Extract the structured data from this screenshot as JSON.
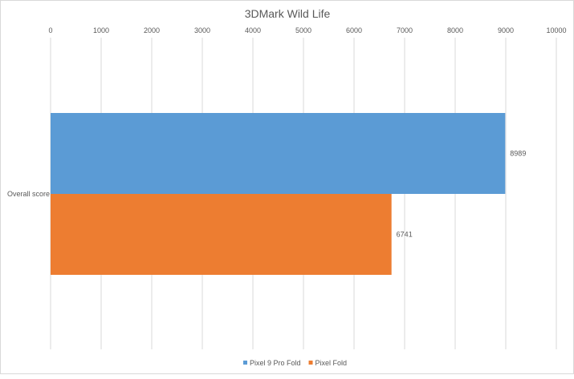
{
  "chart_data": {
    "type": "bar",
    "orientation": "horizontal",
    "title": "3DMark Wild Life",
    "categories": [
      "Overall score"
    ],
    "series": [
      {
        "name": "Pixel 9 Pro Fold",
        "values": [
          8989
        ],
        "color": "#5b9bd5"
      },
      {
        "name": "Pixel Fold",
        "values": [
          6741
        ],
        "color": "#ed7d31"
      }
    ],
    "xlim": [
      0,
      10000
    ],
    "xticks": [
      0,
      1000,
      2000,
      3000,
      4000,
      5000,
      6000,
      7000,
      8000,
      9000,
      10000
    ],
    "xaxis_position": "top",
    "grid": true,
    "data_labels": true,
    "legend": "bottom"
  }
}
